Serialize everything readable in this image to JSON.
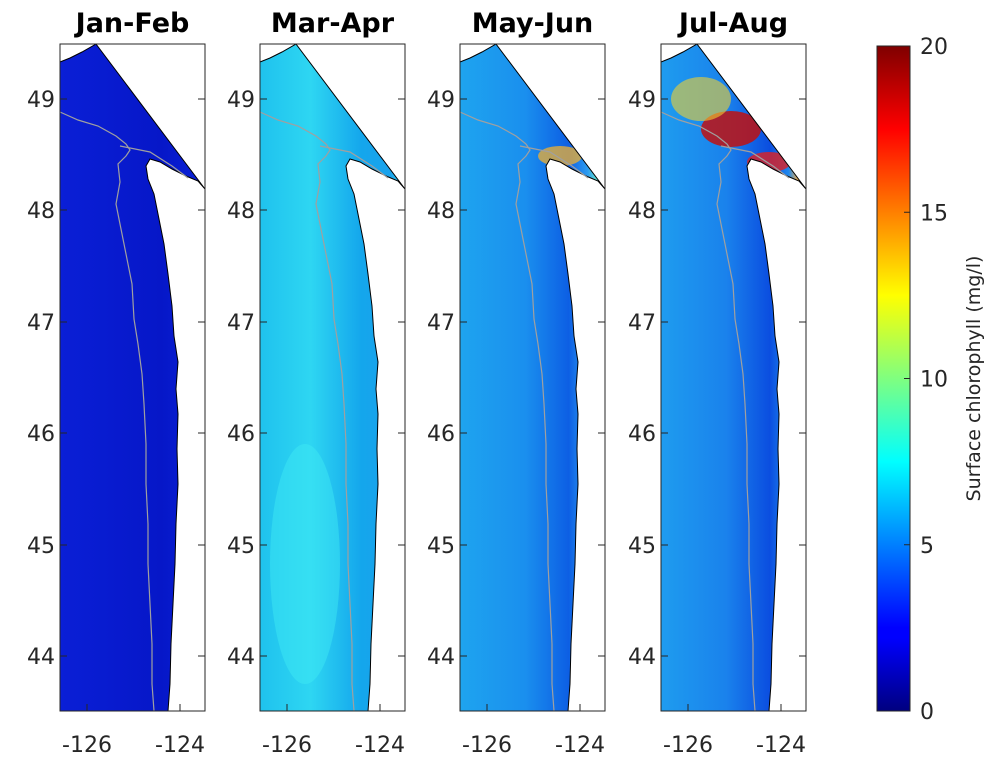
{
  "panels": [
    {
      "title": "Jan-Feb",
      "level": 0.06
    },
    {
      "title": "Mar-Apr",
      "level": 0.3
    },
    {
      "title": "May-Jun",
      "level": 0.22
    },
    {
      "title": "Jul-Aug",
      "level": 0.2
    }
  ],
  "lat_ticks": [
    "49",
    "48",
    "47",
    "46",
    "45",
    "44"
  ],
  "lon_ticks": [
    "-126",
    "-124"
  ],
  "colorbar": {
    "label": "Surface chlorophyll (mg/l)",
    "ticks": [
      "20",
      "15",
      "10",
      "5",
      "0"
    ],
    "min": 0,
    "max": 20,
    "colormap": "jet"
  },
  "coast_color": "#000000",
  "isobath_color": "#a0a0a0"
}
